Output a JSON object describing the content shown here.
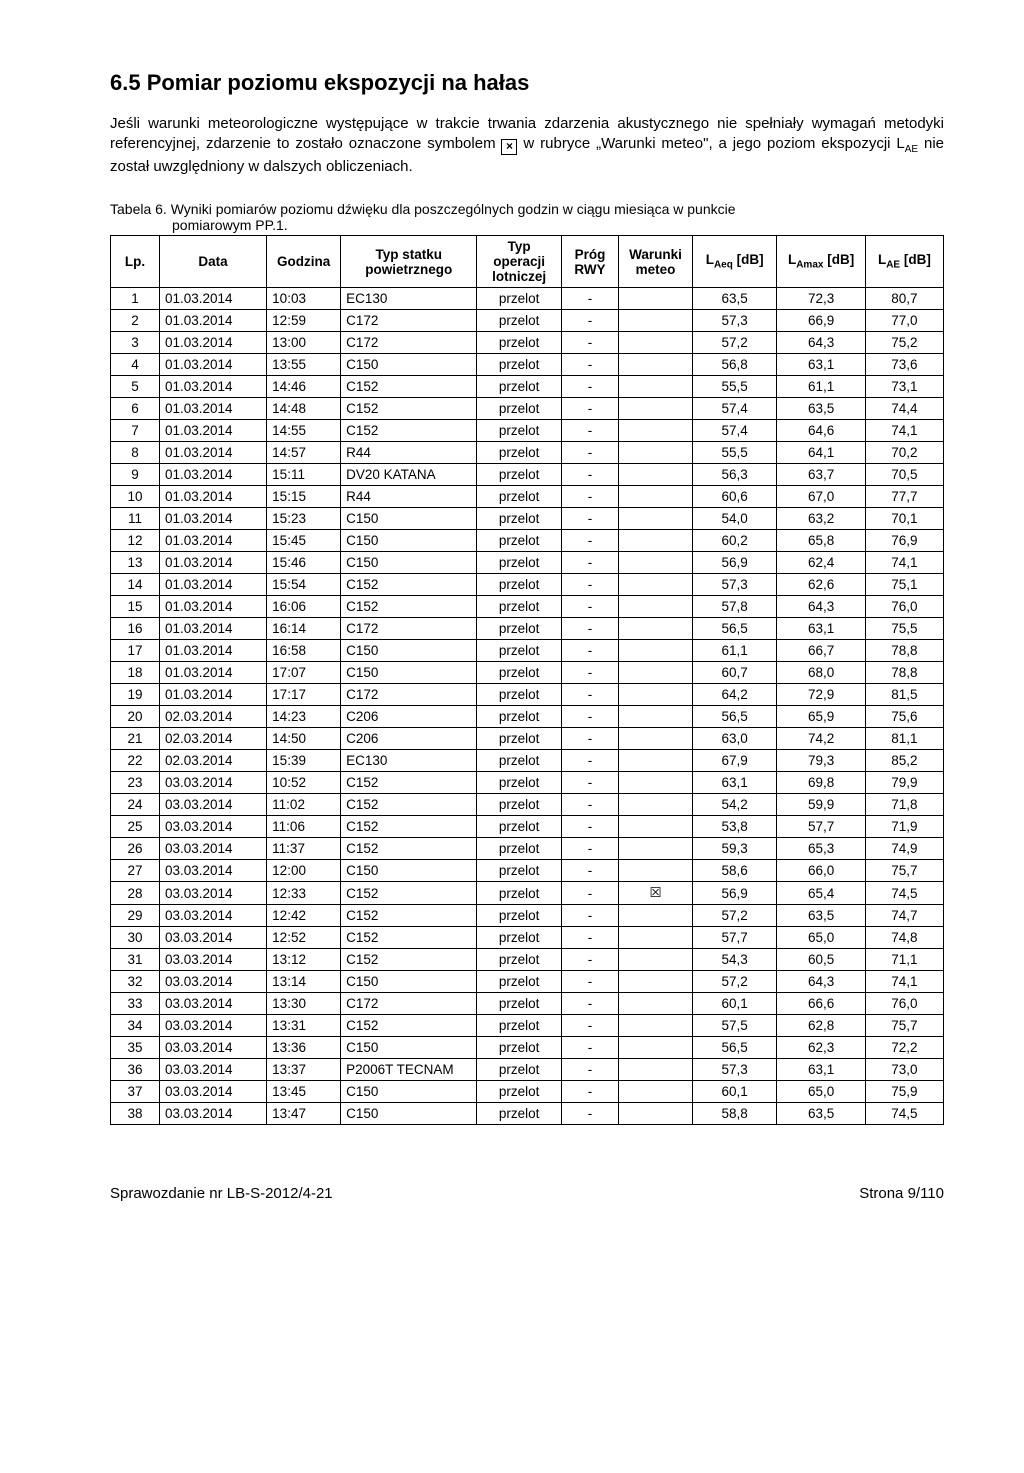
{
  "heading": "6.5  Pomiar poziomu ekspozycji na hałas",
  "intro_parts": {
    "p1": "Jeśli warunki meteorologiczne występujące w trakcie trwania zdarzenia akustycznego nie spełniały wymagań metodyki referencyjnej, zdarzenie to zostało oznaczone symbolem ",
    "symbol": "×",
    "p2": " w rubryce „Warunki meteo\", a jego poziom ekspozycji L",
    "sub": "AE",
    "p3": " nie został uwzględniony w dalszych obliczeniach."
  },
  "caption_line1": "Tabela 6. Wyniki pomiarów poziomu dźwięku dla poszczególnych godzin w ciągu miesiąca w punkcie",
  "caption_line2": "pomiarowym  PP.1.",
  "headers": {
    "lp": "Lp.",
    "data": "Data",
    "godz": "Godzina",
    "typs": "Typ statku powietrznego",
    "oper": "Typ operacji lotniczej",
    "prog": "Próg RWY",
    "meteo": "Warunki meteo",
    "laeq_pre": "L",
    "laeq_sub": "Aeq",
    "laeq_post": " [dB]",
    "lamax_pre": "L",
    "lamax_sub": "Amax",
    "lamax_post": " [dB]",
    "lae_pre": "L",
    "lae_sub": "AE",
    "lae_post": " [dB]"
  },
  "meteo_mark": "☒",
  "rows": [
    {
      "lp": "1",
      "d": "01.03.2014",
      "g": "10:03",
      "ts": "EC130",
      "op": "przelot",
      "pr": "-",
      "m": "",
      "laeq": "63,5",
      "lamax": "72,3",
      "lae": "80,7"
    },
    {
      "lp": "2",
      "d": "01.03.2014",
      "g": "12:59",
      "ts": "C172",
      "op": "przelot",
      "pr": "-",
      "m": "",
      "laeq": "57,3",
      "lamax": "66,9",
      "lae": "77,0"
    },
    {
      "lp": "3",
      "d": "01.03.2014",
      "g": "13:00",
      "ts": "C172",
      "op": "przelot",
      "pr": "-",
      "m": "",
      "laeq": "57,2",
      "lamax": "64,3",
      "lae": "75,2"
    },
    {
      "lp": "4",
      "d": "01.03.2014",
      "g": "13:55",
      "ts": "C150",
      "op": "przelot",
      "pr": "-",
      "m": "",
      "laeq": "56,8",
      "lamax": "63,1",
      "lae": "73,6"
    },
    {
      "lp": "5",
      "d": "01.03.2014",
      "g": "14:46",
      "ts": "C152",
      "op": "przelot",
      "pr": "-",
      "m": "",
      "laeq": "55,5",
      "lamax": "61,1",
      "lae": "73,1"
    },
    {
      "lp": "6",
      "d": "01.03.2014",
      "g": "14:48",
      "ts": "C152",
      "op": "przelot",
      "pr": "-",
      "m": "",
      "laeq": "57,4",
      "lamax": "63,5",
      "lae": "74,4"
    },
    {
      "lp": "7",
      "d": "01.03.2014",
      "g": "14:55",
      "ts": "C152",
      "op": "przelot",
      "pr": "-",
      "m": "",
      "laeq": "57,4",
      "lamax": "64,6",
      "lae": "74,1"
    },
    {
      "lp": "8",
      "d": "01.03.2014",
      "g": "14:57",
      "ts": "R44",
      "op": "przelot",
      "pr": "-",
      "m": "",
      "laeq": "55,5",
      "lamax": "64,1",
      "lae": "70,2"
    },
    {
      "lp": "9",
      "d": "01.03.2014",
      "g": "15:11",
      "ts": "DV20 KATANA",
      "op": "przelot",
      "pr": "-",
      "m": "",
      "laeq": "56,3",
      "lamax": "63,7",
      "lae": "70,5"
    },
    {
      "lp": "10",
      "d": "01.03.2014",
      "g": "15:15",
      "ts": "R44",
      "op": "przelot",
      "pr": "-",
      "m": "",
      "laeq": "60,6",
      "lamax": "67,0",
      "lae": "77,7"
    },
    {
      "lp": "11",
      "d": "01.03.2014",
      "g": "15:23",
      "ts": "C150",
      "op": "przelot",
      "pr": "-",
      "m": "",
      "laeq": "54,0",
      "lamax": "63,2",
      "lae": "70,1"
    },
    {
      "lp": "12",
      "d": "01.03.2014",
      "g": "15:45",
      "ts": "C150",
      "op": "przelot",
      "pr": "-",
      "m": "",
      "laeq": "60,2",
      "lamax": "65,8",
      "lae": "76,9"
    },
    {
      "lp": "13",
      "d": "01.03.2014",
      "g": "15:46",
      "ts": "C150",
      "op": "przelot",
      "pr": "-",
      "m": "",
      "laeq": "56,9",
      "lamax": "62,4",
      "lae": "74,1"
    },
    {
      "lp": "14",
      "d": "01.03.2014",
      "g": "15:54",
      "ts": "C152",
      "op": "przelot",
      "pr": "-",
      "m": "",
      "laeq": "57,3",
      "lamax": "62,6",
      "lae": "75,1"
    },
    {
      "lp": "15",
      "d": "01.03.2014",
      "g": "16:06",
      "ts": "C152",
      "op": "przelot",
      "pr": "-",
      "m": "",
      "laeq": "57,8",
      "lamax": "64,3",
      "lae": "76,0"
    },
    {
      "lp": "16",
      "d": "01.03.2014",
      "g": "16:14",
      "ts": "C172",
      "op": "przelot",
      "pr": "-",
      "m": "",
      "laeq": "56,5",
      "lamax": "63,1",
      "lae": "75,5"
    },
    {
      "lp": "17",
      "d": "01.03.2014",
      "g": "16:58",
      "ts": "C150",
      "op": "przelot",
      "pr": "-",
      "m": "",
      "laeq": "61,1",
      "lamax": "66,7",
      "lae": "78,8"
    },
    {
      "lp": "18",
      "d": "01.03.2014",
      "g": "17:07",
      "ts": "C150",
      "op": "przelot",
      "pr": "-",
      "m": "",
      "laeq": "60,7",
      "lamax": "68,0",
      "lae": "78,8"
    },
    {
      "lp": "19",
      "d": "01.03.2014",
      "g": "17:17",
      "ts": "C172",
      "op": "przelot",
      "pr": "-",
      "m": "",
      "laeq": "64,2",
      "lamax": "72,9",
      "lae": "81,5"
    },
    {
      "lp": "20",
      "d": "02.03.2014",
      "g": "14:23",
      "ts": "C206",
      "op": "przelot",
      "pr": "-",
      "m": "",
      "laeq": "56,5",
      "lamax": "65,9",
      "lae": "75,6"
    },
    {
      "lp": "21",
      "d": "02.03.2014",
      "g": "14:50",
      "ts": "C206",
      "op": "przelot",
      "pr": "-",
      "m": "",
      "laeq": "63,0",
      "lamax": "74,2",
      "lae": "81,1"
    },
    {
      "lp": "22",
      "d": "02.03.2014",
      "g": "15:39",
      "ts": "EC130",
      "op": "przelot",
      "pr": "-",
      "m": "",
      "laeq": "67,9",
      "lamax": "79,3",
      "lae": "85,2"
    },
    {
      "lp": "23",
      "d": "03.03.2014",
      "g": "10:52",
      "ts": "C152",
      "op": "przelot",
      "pr": "-",
      "m": "",
      "laeq": "63,1",
      "lamax": "69,8",
      "lae": "79,9"
    },
    {
      "lp": "24",
      "d": "03.03.2014",
      "g": "11:02",
      "ts": "C152",
      "op": "przelot",
      "pr": "-",
      "m": "",
      "laeq": "54,2",
      "lamax": "59,9",
      "lae": "71,8"
    },
    {
      "lp": "25",
      "d": "03.03.2014",
      "g": "11:06",
      "ts": "C152",
      "op": "przelot",
      "pr": "-",
      "m": "",
      "laeq": "53,8",
      "lamax": "57,7",
      "lae": "71,9"
    },
    {
      "lp": "26",
      "d": "03.03.2014",
      "g": "11:37",
      "ts": "C152",
      "op": "przelot",
      "pr": "-",
      "m": "",
      "laeq": "59,3",
      "lamax": "65,3",
      "lae": "74,9"
    },
    {
      "lp": "27",
      "d": "03.03.2014",
      "g": "12:00",
      "ts": "C150",
      "op": "przelot",
      "pr": "-",
      "m": "",
      "laeq": "58,6",
      "lamax": "66,0",
      "lae": "75,7"
    },
    {
      "lp": "28",
      "d": "03.03.2014",
      "g": "12:33",
      "ts": "C152",
      "op": "przelot",
      "pr": "-",
      "m": "mark",
      "laeq": "56,9",
      "lamax": "65,4",
      "lae": "74,5"
    },
    {
      "lp": "29",
      "d": "03.03.2014",
      "g": "12:42",
      "ts": "C152",
      "op": "przelot",
      "pr": "-",
      "m": "",
      "laeq": "57,2",
      "lamax": "63,5",
      "lae": "74,7"
    },
    {
      "lp": "30",
      "d": "03.03.2014",
      "g": "12:52",
      "ts": "C152",
      "op": "przelot",
      "pr": "-",
      "m": "",
      "laeq": "57,7",
      "lamax": "65,0",
      "lae": "74,8"
    },
    {
      "lp": "31",
      "d": "03.03.2014",
      "g": "13:12",
      "ts": "C152",
      "op": "przelot",
      "pr": "-",
      "m": "",
      "laeq": "54,3",
      "lamax": "60,5",
      "lae": "71,1"
    },
    {
      "lp": "32",
      "d": "03.03.2014",
      "g": "13:14",
      "ts": "C150",
      "op": "przelot",
      "pr": "-",
      "m": "",
      "laeq": "57,2",
      "lamax": "64,3",
      "lae": "74,1"
    },
    {
      "lp": "33",
      "d": "03.03.2014",
      "g": "13:30",
      "ts": "C172",
      "op": "przelot",
      "pr": "-",
      "m": "",
      "laeq": "60,1",
      "lamax": "66,6",
      "lae": "76,0"
    },
    {
      "lp": "34",
      "d": "03.03.2014",
      "g": "13:31",
      "ts": "C152",
      "op": "przelot",
      "pr": "-",
      "m": "",
      "laeq": "57,5",
      "lamax": "62,8",
      "lae": "75,7"
    },
    {
      "lp": "35",
      "d": "03.03.2014",
      "g": "13:36",
      "ts": "C150",
      "op": "przelot",
      "pr": "-",
      "m": "",
      "laeq": "56,5",
      "lamax": "62,3",
      "lae": "72,2"
    },
    {
      "lp": "36",
      "d": "03.03.2014",
      "g": "13:37",
      "ts": "P2006T TECNAM",
      "op": "przelot",
      "pr": "-",
      "m": "",
      "laeq": "57,3",
      "lamax": "63,1",
      "lae": "73,0"
    },
    {
      "lp": "37",
      "d": "03.03.2014",
      "g": "13:45",
      "ts": "C150",
      "op": "przelot",
      "pr": "-",
      "m": "",
      "laeq": "60,1",
      "lamax": "65,0",
      "lae": "75,9"
    },
    {
      "lp": "38",
      "d": "03.03.2014",
      "g": "13:47",
      "ts": "C150",
      "op": "przelot",
      "pr": "-",
      "m": "",
      "laeq": "58,8",
      "lamax": "63,5",
      "lae": "74,5"
    }
  ],
  "footer_left": "Sprawozdanie nr LB-S-2012/4-21",
  "footer_right": "Strona 9/110"
}
